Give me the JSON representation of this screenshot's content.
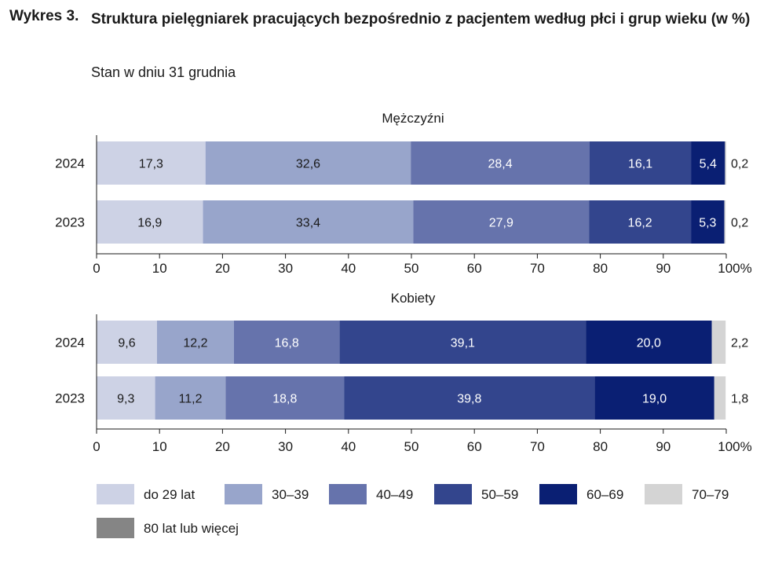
{
  "header": {
    "prefix": "Wykres 3.",
    "title": "Struktura pielęgniarek pracujących bezpośrednio z pacjentem według płci i grup wieku (w %)",
    "subtitle": "Stan w dniu 31 grudnia"
  },
  "chart_data": {
    "type": "bar",
    "orientation": "horizontal-stacked-100",
    "title": "Struktura pielęgniarek pracujących bezpośrednio z pacjentem według płci i grup wieku (w %)",
    "subtitle": "Stan w dniu 31 grudnia",
    "xlim": [
      0,
      100
    ],
    "ticks": [
      "0",
      "10",
      "20",
      "30",
      "40",
      "50",
      "60",
      "70",
      "80",
      "90",
      "100%"
    ],
    "legend": [
      {
        "name": "do 29 lat",
        "color": "#cdd2e5"
      },
      {
        "name": "30–39",
        "color": "#98a5cb"
      },
      {
        "name": "40–49",
        "color": "#6673ac"
      },
      {
        "name": "50–59",
        "color": "#33458d"
      },
      {
        "name": "60–69",
        "color": "#0a1f73"
      },
      {
        "name": "70–79",
        "color": "#d4d4d4"
      },
      {
        "name": "80 lat lub więcej",
        "color": "#858585"
      }
    ],
    "panels": [
      {
        "title": "Mężczyźni",
        "categories": [
          "2024",
          "2023"
        ],
        "series": [
          {
            "name": "do 29 lat",
            "values": [
              17.3,
              16.9
            ],
            "labels": [
              "17,3",
              "16,9"
            ]
          },
          {
            "name": "30–39",
            "values": [
              32.6,
              33.4
            ],
            "labels": [
              "32,6",
              "33,4"
            ]
          },
          {
            "name": "40–49",
            "values": [
              28.4,
              27.9
            ],
            "labels": [
              "28,4",
              "27,9"
            ]
          },
          {
            "name": "50–59",
            "values": [
              16.1,
              16.2
            ],
            "labels": [
              "16,1",
              "16,2"
            ]
          },
          {
            "name": "60–69",
            "values": [
              5.4,
              5.3
            ],
            "labels": [
              "5,4",
              "5,3"
            ]
          },
          {
            "name": "70–79",
            "values": [
              0.2,
              0.2
            ],
            "labels": [
              "0,2",
              "0,2"
            ]
          },
          {
            "name": "80 lat lub więcej",
            "values": [
              0,
              0
            ],
            "labels": [
              "",
              ""
            ]
          }
        ]
      },
      {
        "title": "Kobiety",
        "categories": [
          "2024",
          "2023"
        ],
        "series": [
          {
            "name": "do 29 lat",
            "values": [
              9.6,
              9.3
            ],
            "labels": [
              "9,6",
              "9,3"
            ]
          },
          {
            "name": "30–39",
            "values": [
              12.2,
              11.2
            ],
            "labels": [
              "12,2",
              "11,2"
            ]
          },
          {
            "name": "40–49",
            "values": [
              16.8,
              18.8
            ],
            "labels": [
              "16,8",
              "18,8"
            ]
          },
          {
            "name": "50–59",
            "values": [
              39.1,
              39.8
            ],
            "labels": [
              "39,1",
              "39,8"
            ]
          },
          {
            "name": "60–69",
            "values": [
              20.0,
              19.0
            ],
            "labels": [
              "20,0",
              "19,0"
            ]
          },
          {
            "name": "70–79",
            "values": [
              2.2,
              1.8
            ],
            "labels": [
              "2,2",
              "1,8"
            ]
          },
          {
            "name": "80 lat lub więcej",
            "values": [
              0,
              0
            ],
            "labels": [
              "",
              ""
            ]
          }
        ]
      }
    ]
  }
}
